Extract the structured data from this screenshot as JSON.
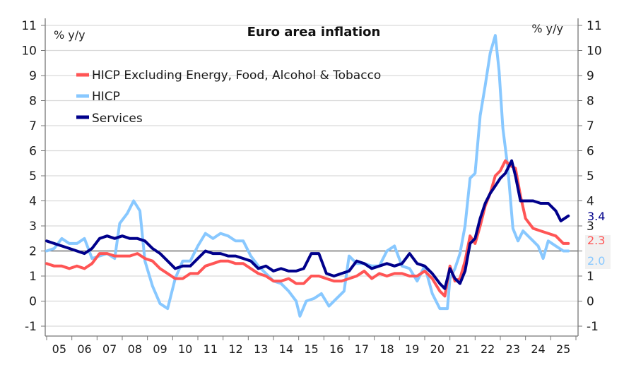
{
  "chart_data": {
    "type": "line",
    "title": "Euro area inflation",
    "ylabel_left": "% y/y",
    "ylabel_right": "% y/y",
    "xlabel": "",
    "ylim": [
      -1,
      11
    ],
    "yticks": [
      -1,
      0,
      1,
      2,
      3,
      4,
      5,
      6,
      7,
      8,
      9,
      10,
      11
    ],
    "ytick_labels": [
      "-1",
      "0",
      "1",
      "2",
      "3",
      "4",
      "5",
      "6",
      "7",
      "8",
      "9",
      "10",
      "11"
    ],
    "xlim": [
      2005.0,
      2026.0
    ],
    "xtick_labels": [
      "05",
      "06",
      "07",
      "08",
      "09",
      "10",
      "11",
      "12",
      "13",
      "14",
      "15",
      "16",
      "17",
      "18",
      "19",
      "20",
      "21",
      "22",
      "23",
      "24",
      "25"
    ],
    "reference_line": 2,
    "grid": true,
    "legend_position": "top-left",
    "series": [
      {
        "name": "HICP Excluding Energy, Food, Alcohol & Tobacco",
        "color": "#ff5555",
        "end_label": "2.3",
        "x": [
          2005.0,
          2005.3,
          2005.6,
          2005.9,
          2006.2,
          2006.5,
          2006.8,
          2007.1,
          2007.4,
          2007.7,
          2008.0,
          2008.3,
          2008.6,
          2008.9,
          2009.2,
          2009.5,
          2009.8,
          2010.1,
          2010.4,
          2010.7,
          2011.0,
          2011.3,
          2011.6,
          2011.9,
          2012.2,
          2012.5,
          2012.8,
          2013.1,
          2013.4,
          2013.7,
          2014.0,
          2014.3,
          2014.6,
          2014.9,
          2015.2,
          2015.5,
          2015.8,
          2016.1,
          2016.4,
          2016.7,
          2017.0,
          2017.3,
          2017.6,
          2017.9,
          2018.2,
          2018.5,
          2018.8,
          2019.1,
          2019.4,
          2019.7,
          2020.0,
          2020.3,
          2020.6,
          2020.8,
          2021.0,
          2021.2,
          2021.4,
          2021.6,
          2021.8,
          2022.0,
          2022.2,
          2022.4,
          2022.6,
          2022.8,
          2023.0,
          2023.2,
          2023.4,
          2023.6,
          2023.8,
          2024.0,
          2024.3,
          2024.6,
          2024.9,
          2025.2,
          2025.5,
          2025.7
        ],
        "values": [
          1.5,
          1.4,
          1.4,
          1.3,
          1.4,
          1.3,
          1.5,
          1.9,
          1.9,
          1.8,
          1.8,
          1.8,
          1.9,
          1.7,
          1.6,
          1.3,
          1.1,
          0.9,
          0.9,
          1.1,
          1.1,
          1.4,
          1.5,
          1.6,
          1.6,
          1.5,
          1.5,
          1.3,
          1.1,
          1.0,
          0.8,
          0.8,
          0.9,
          0.7,
          0.7,
          1.0,
          1.0,
          0.9,
          0.8,
          0.8,
          0.9,
          1.0,
          1.2,
          0.9,
          1.1,
          1.0,
          1.1,
          1.1,
          1.0,
          1.0,
          1.2,
          0.9,
          0.4,
          0.2,
          1.4,
          0.8,
          0.9,
          1.6,
          2.6,
          2.3,
          3.0,
          3.8,
          4.3,
          5.0,
          5.2,
          5.6,
          5.4,
          5.3,
          4.2,
          3.3,
          2.9,
          2.8,
          2.7,
          2.6,
          2.3,
          2.3
        ]
      },
      {
        "name": "HICP",
        "color": "#88c8ff",
        "end_label": "2.0",
        "x": [
          2005.0,
          2005.3,
          2005.6,
          2005.9,
          2006.2,
          2006.5,
          2006.8,
          2007.1,
          2007.4,
          2007.7,
          2007.9,
          2008.2,
          2008.45,
          2008.7,
          2008.9,
          2009.2,
          2009.5,
          2009.8,
          2010.1,
          2010.4,
          2010.7,
          2011.0,
          2011.3,
          2011.6,
          2011.9,
          2012.2,
          2012.5,
          2012.8,
          2013.1,
          2013.4,
          2013.7,
          2014.0,
          2014.3,
          2014.6,
          2014.9,
          2015.05,
          2015.3,
          2015.6,
          2015.9,
          2016.2,
          2016.5,
          2016.8,
          2017.0,
          2017.3,
          2017.6,
          2017.9,
          2018.2,
          2018.5,
          2018.8,
          2019.1,
          2019.4,
          2019.7,
          2020.0,
          2020.3,
          2020.6,
          2020.9,
          2021.0,
          2021.2,
          2021.4,
          2021.6,
          2021.8,
          2022.0,
          2022.2,
          2022.4,
          2022.6,
          2022.8,
          2022.95,
          2023.1,
          2023.3,
          2023.5,
          2023.7,
          2023.9,
          2024.1,
          2024.3,
          2024.5,
          2024.7,
          2024.9,
          2025.2,
          2025.5,
          2025.7
        ],
        "values": [
          2.0,
          2.1,
          2.5,
          2.3,
          2.3,
          2.5,
          1.7,
          1.8,
          1.9,
          1.7,
          3.1,
          3.5,
          4.0,
          3.6,
          1.6,
          0.6,
          -0.1,
          -0.3,
          0.9,
          1.6,
          1.6,
          2.2,
          2.7,
          2.5,
          2.7,
          2.6,
          2.4,
          2.4,
          1.8,
          1.4,
          1.1,
          0.8,
          0.7,
          0.4,
          0.0,
          -0.6,
          0.0,
          0.1,
          0.3,
          -0.2,
          0.1,
          0.4,
          1.8,
          1.5,
          1.5,
          1.4,
          1.4,
          2.0,
          2.2,
          1.4,
          1.3,
          0.8,
          1.4,
          0.3,
          -0.3,
          -0.3,
          0.9,
          1.3,
          1.9,
          3.0,
          4.9,
          5.1,
          7.4,
          8.6,
          9.9,
          10.6,
          9.2,
          6.9,
          5.3,
          2.9,
          2.4,
          2.8,
          2.6,
          2.4,
          2.2,
          1.7,
          2.4,
          2.2,
          2.0,
          2.0
        ]
      },
      {
        "name": "Services",
        "color": "#00008b",
        "end_label": "3.4",
        "x": [
          2005.0,
          2005.3,
          2005.6,
          2005.9,
          2006.2,
          2006.5,
          2006.8,
          2007.1,
          2007.4,
          2007.7,
          2008.0,
          2008.3,
          2008.6,
          2008.9,
          2009.2,
          2009.5,
          2009.8,
          2010.1,
          2010.4,
          2010.7,
          2011.0,
          2011.3,
          2011.6,
          2011.9,
          2012.2,
          2012.5,
          2012.8,
          2013.1,
          2013.4,
          2013.7,
          2014.0,
          2014.3,
          2014.6,
          2014.9,
          2015.2,
          2015.5,
          2015.8,
          2016.1,
          2016.4,
          2016.7,
          2017.0,
          2017.3,
          2017.6,
          2017.9,
          2018.2,
          2018.5,
          2018.8,
          2019.1,
          2019.4,
          2019.7,
          2020.0,
          2020.3,
          2020.6,
          2020.8,
          2021.0,
          2021.2,
          2021.4,
          2021.6,
          2021.8,
          2022.0,
          2022.2,
          2022.4,
          2022.6,
          2022.8,
          2023.0,
          2023.2,
          2023.45,
          2023.6,
          2023.8,
          2024.0,
          2024.3,
          2024.6,
          2024.9,
          2025.2,
          2025.4,
          2025.7
        ],
        "values": [
          2.4,
          2.3,
          2.2,
          2.1,
          2.0,
          1.9,
          2.1,
          2.5,
          2.6,
          2.5,
          2.6,
          2.5,
          2.5,
          2.4,
          2.1,
          1.9,
          1.6,
          1.3,
          1.4,
          1.4,
          1.7,
          2.0,
          1.9,
          1.9,
          1.8,
          1.8,
          1.7,
          1.6,
          1.3,
          1.4,
          1.2,
          1.3,
          1.2,
          1.2,
          1.3,
          1.9,
          1.9,
          1.1,
          1.0,
          1.1,
          1.2,
          1.6,
          1.5,
          1.3,
          1.4,
          1.5,
          1.4,
          1.5,
          1.9,
          1.5,
          1.4,
          1.1,
          0.7,
          0.5,
          1.3,
          0.9,
          0.7,
          1.2,
          2.3,
          2.5,
          3.3,
          3.9,
          4.3,
          4.6,
          4.9,
          5.1,
          5.6,
          5.0,
          4.0,
          4.0,
          4.0,
          3.9,
          3.9,
          3.6,
          3.2,
          3.4
        ]
      }
    ]
  }
}
